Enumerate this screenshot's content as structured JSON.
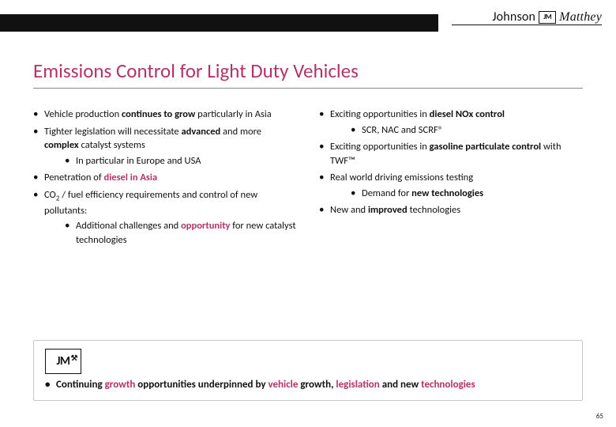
{
  "colors": {
    "accent": "#b53269",
    "text": "#111111",
    "rule": "#888888",
    "box_border": "#c8c8c8",
    "bar": "#111111",
    "bg": "#ffffff"
  },
  "logo": {
    "text1": "Johnson",
    "text2": "Matthey",
    "jm": "JM"
  },
  "title": {
    "text": "Emissions Control for Light Duty Vehicles",
    "fontsize": 25
  },
  "left": [
    {
      "frags": [
        {
          "t": "Vehicle production "
        },
        {
          "t": "continues to grow",
          "b": true
        },
        {
          "t": " particularly in Asia"
        }
      ]
    },
    {
      "frags": [
        {
          "t": "Tighter legislation will necessitate "
        },
        {
          "t": "advanced",
          "b": true
        },
        {
          "t": " and more "
        },
        {
          "t": "complex",
          "b": true
        },
        {
          "t": " catalyst systems"
        }
      ],
      "sub": [
        {
          "frags": [
            {
              "t": "In particular in Europe and USA"
            }
          ]
        }
      ]
    },
    {
      "frags": [
        {
          "t": "Penetration of "
        },
        {
          "t": "diesel in Asia",
          "b": true,
          "c": "accent"
        }
      ]
    },
    {
      "frags": [
        {
          "t": "CO"
        },
        {
          "t": "2",
          "sub2": true
        },
        {
          "t": " / fuel efficiency requirements and control of new pollutants:"
        }
      ],
      "sub": [
        {
          "frags": [
            {
              "t": "Additional challenges and "
            },
            {
              "t": "opportunity",
              "b": true,
              "c": "accent"
            },
            {
              "t": " for new catalyst technologies"
            }
          ]
        }
      ]
    }
  ],
  "right": [
    {
      "frags": [
        {
          "t": "Exciting opportunities in "
        },
        {
          "t": "diesel NOx control",
          "b": true
        }
      ],
      "sub": [
        {
          "frags": [
            {
              "t": "SCR, NAC and SCRF®"
            }
          ]
        }
      ]
    },
    {
      "frags": [
        {
          "t": "Exciting opportunities in "
        },
        {
          "t": "gasoline particulate control",
          "b": true
        },
        {
          "t": " with TWF™"
        }
      ]
    },
    {
      "frags": [
        {
          "t": "Real world driving emissions testing"
        }
      ],
      "sub": [
        {
          "frags": [
            {
              "t": "Demand for "
            },
            {
              "t": "new technologies",
              "b": true
            }
          ]
        }
      ]
    },
    {
      "frags": [
        {
          "t": "New and "
        },
        {
          "t": "improved",
          "b": true
        },
        {
          "t": " technologies"
        }
      ]
    }
  ],
  "footer": {
    "jm": "JM",
    "bullet": [
      {
        "t": "Continuing "
      },
      {
        "t": "growth",
        "c": "accent"
      },
      {
        "t": " opportunities underpinned by "
      },
      {
        "t": "vehicle",
        "c": "accent"
      },
      {
        "t": " growth, "
      },
      {
        "t": "legislation",
        "c": "accent"
      },
      {
        "t": " and new "
      },
      {
        "t": "technologies",
        "c": "accent"
      }
    ]
  },
  "page_number": "65"
}
